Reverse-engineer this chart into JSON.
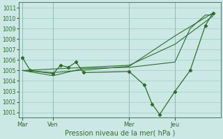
{
  "bg_color": "#cce8e4",
  "grid_color": "#9eccc6",
  "line_color": "#2d6e2d",
  "marker_color": "#2d6e2d",
  "xlabel_text": "Pression niveau de la mer( hPa )",
  "ylim": [
    1000.5,
    1011.5
  ],
  "yticks": [
    1001,
    1002,
    1003,
    1004,
    1005,
    1006,
    1007,
    1008,
    1009,
    1010,
    1011
  ],
  "xtick_labels": [
    "Mar",
    "Ven",
    "Mer",
    "Jeu"
  ],
  "xtick_positions": [
    0,
    4,
    14,
    20
  ],
  "vline_positions": [
    0,
    4,
    14,
    20
  ],
  "xlim": [
    -0.5,
    26
  ],
  "series1": {
    "x": [
      0,
      1,
      4,
      5,
      6,
      7,
      8,
      14,
      16,
      17,
      18,
      20,
      22,
      24,
      25
    ],
    "y": [
      1006.2,
      1005.0,
      1004.7,
      1005.5,
      1005.3,
      1005.8,
      1004.8,
      1004.9,
      1003.6,
      1001.8,
      1000.8,
      1003.0,
      1005.0,
      1009.3,
      1010.5
    ]
  },
  "series2": {
    "x": [
      0,
      14,
      20,
      25
    ],
    "y": [
      1005.0,
      1005.5,
      1007.5,
      1010.2
    ]
  },
  "series3": {
    "x": [
      0,
      4,
      14,
      20,
      25
    ],
    "y": [
      1005.0,
      1004.8,
      1005.4,
      1008.3,
      1010.5
    ]
  },
  "series4": {
    "x": [
      0,
      4,
      8,
      14,
      20,
      22,
      24,
      25
    ],
    "y": [
      1005.0,
      1004.5,
      1005.2,
      1005.3,
      1005.8,
      1009.0,
      1010.3,
      1010.3
    ]
  }
}
